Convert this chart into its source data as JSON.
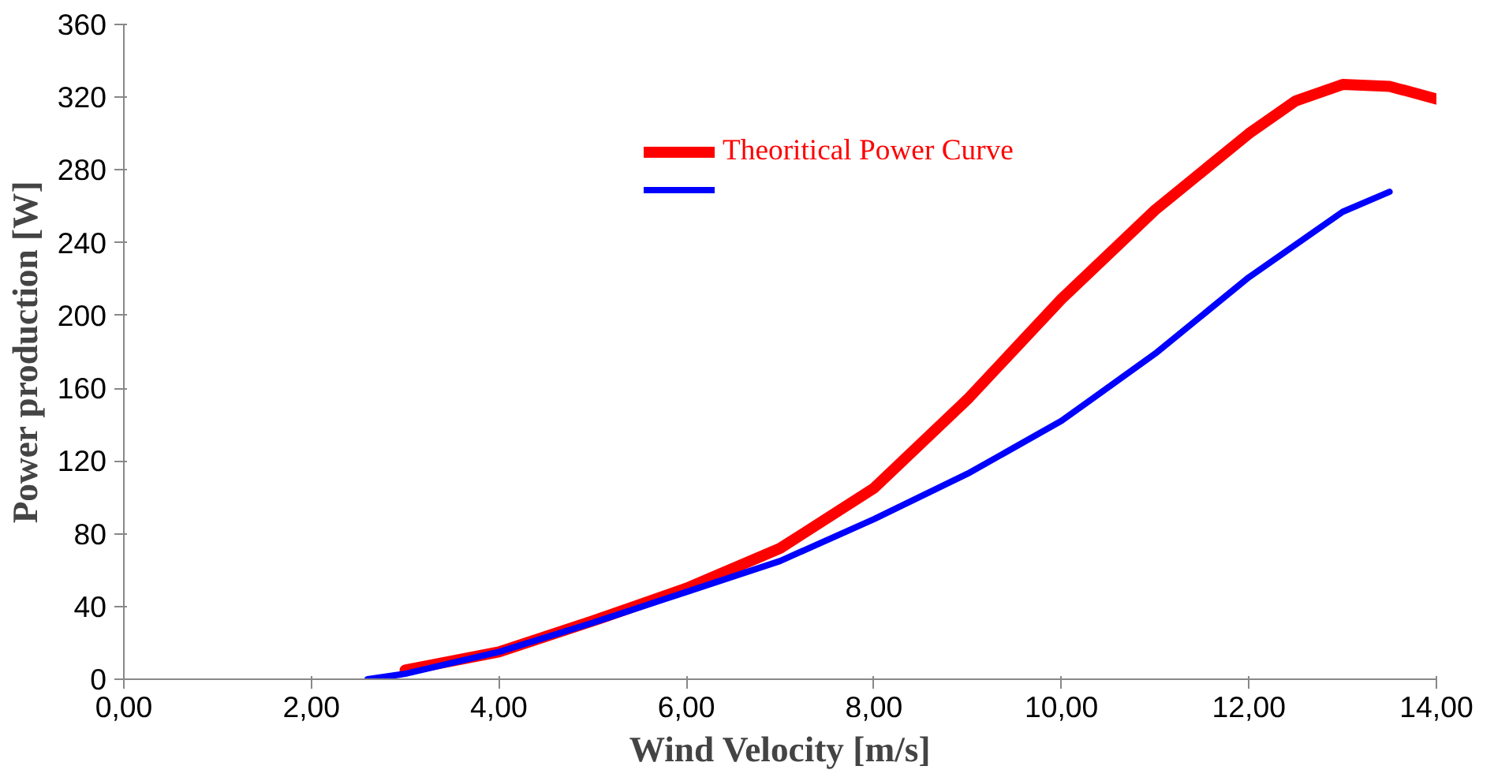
{
  "chart_data": {
    "type": "line",
    "xlabel": "Wind Velocity [m/s]",
    "ylabel": "Power production [W]",
    "xlim": [
      0,
      14
    ],
    "ylim": [
      0,
      360
    ],
    "xticks": [
      {
        "value": 0,
        "label": "0,00"
      },
      {
        "value": 2,
        "label": "2,00"
      },
      {
        "value": 4,
        "label": "4,00"
      },
      {
        "value": 6,
        "label": "6,00"
      },
      {
        "value": 8,
        "label": "8,00"
      },
      {
        "value": 10,
        "label": "10,00"
      },
      {
        "value": 12,
        "label": "12,00"
      },
      {
        "value": 14,
        "label": "14,00"
      }
    ],
    "yticks": [
      0,
      40,
      80,
      120,
      160,
      200,
      240,
      280,
      320,
      360
    ],
    "grid": false,
    "legend": "top right",
    "marker": "none",
    "line_style": "solid",
    "series": [
      {
        "name": "Theoritical Power Curve",
        "color": "#ff0000",
        "x": [
          3.0,
          4,
          5,
          6,
          7,
          8,
          9,
          10,
          11,
          12,
          12.5,
          13,
          13.5,
          14
        ],
        "values": [
          5,
          15,
          32,
          50,
          72,
          105,
          154,
          209,
          258,
          300,
          318,
          327,
          326,
          319
        ]
      },
      {
        "color": "#0000ff",
        "x": [
          2.6,
          3,
          4,
          5,
          6,
          7,
          8,
          9,
          10,
          11,
          12,
          13,
          13.5
        ],
        "values": [
          0,
          3,
          15,
          31,
          48,
          65,
          88,
          113,
          142,
          179,
          221,
          257,
          268
        ]
      }
    ]
  }
}
